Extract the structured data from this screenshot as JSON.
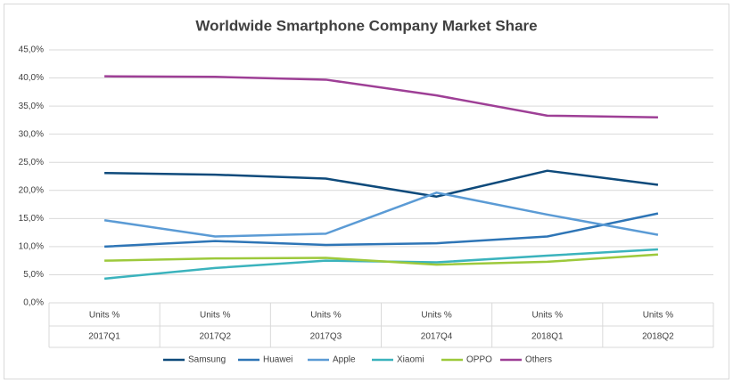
{
  "chart_data": {
    "type": "line",
    "title": "Worldwide Smartphone Company Market Share",
    "categories": [
      "2017Q1",
      "2017Q2",
      "2017Q3",
      "2017Q4",
      "2018Q1",
      "2018Q2"
    ],
    "category_units": [
      "Units %",
      "Units %",
      "Units %",
      "Units %",
      "Units %",
      "Units %"
    ],
    "series": [
      {
        "name": "Samsung",
        "color": "#0e4a7b",
        "values": [
          23.1,
          22.8,
          22.1,
          18.9,
          23.5,
          21.0
        ]
      },
      {
        "name": "Huawei",
        "color": "#2e75b6",
        "values": [
          10.0,
          11.0,
          10.3,
          10.6,
          11.8,
          15.9
        ]
      },
      {
        "name": "Apple",
        "color": "#5b9bd5",
        "values": [
          14.7,
          11.8,
          12.3,
          19.6,
          15.7,
          12.1
        ]
      },
      {
        "name": "Xiaomi",
        "color": "#3bb3bd",
        "values": [
          4.3,
          6.2,
          7.5,
          7.2,
          8.4,
          9.5
        ]
      },
      {
        "name": "OPPO",
        "color": "#9dc93b",
        "values": [
          7.5,
          7.9,
          8.0,
          6.8,
          7.3,
          8.6
        ]
      },
      {
        "name": "Others",
        "color": "#9e3f96",
        "values": [
          40.3,
          40.2,
          39.7,
          36.9,
          33.3,
          33.0
        ]
      }
    ],
    "ylim": [
      0,
      45
    ],
    "yticks": [
      {
        "value": 0,
        "label": "0,0%"
      },
      {
        "value": 5,
        "label": "5,0%"
      },
      {
        "value": 10,
        "label": "10,0%"
      },
      {
        "value": 15,
        "label": "15,0%"
      },
      {
        "value": 20,
        "label": "20,0%"
      },
      {
        "value": 25,
        "label": "25,0%"
      },
      {
        "value": 30,
        "label": "30,0%"
      },
      {
        "value": 35,
        "label": "35,0%"
      },
      {
        "value": 40,
        "label": "40,0%"
      },
      {
        "value": 45,
        "label": "45,0%"
      }
    ],
    "grid": true,
    "legend": "bottom"
  }
}
